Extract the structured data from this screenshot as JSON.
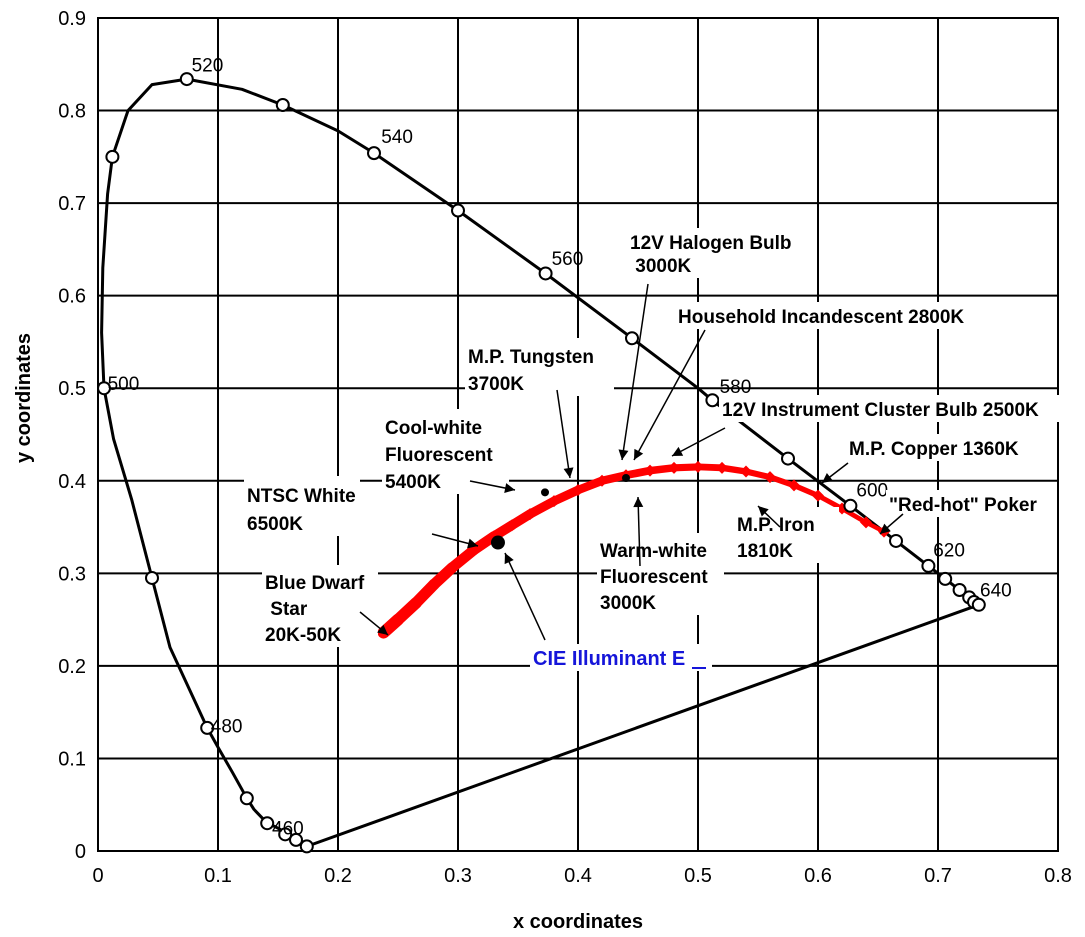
{
  "chart_data": {
    "type": "scatter",
    "xlabel": "x coordinates",
    "ylabel": "y coordinates",
    "xlim": [
      0,
      0.8
    ],
    "ylim": [
      0,
      0.9
    ],
    "xticks": [
      "0",
      "0.1",
      "0.2",
      "0.3",
      "0.4",
      "0.5",
      "0.6",
      "0.7",
      "0.8"
    ],
    "yticks": [
      "0",
      "0.1",
      "0.2",
      "0.3",
      "0.4",
      "0.5",
      "0.6",
      "0.7",
      "0.8",
      "0.9"
    ],
    "grid": true,
    "spectral_locus": [
      [
        0.174,
        0.005
      ],
      [
        0.17,
        0.008
      ],
      [
        0.165,
        0.012
      ],
      [
        0.158,
        0.019
      ],
      [
        0.148,
        0.026
      ],
      [
        0.141,
        0.03
      ],
      [
        0.13,
        0.045
      ],
      [
        0.124,
        0.057
      ],
      [
        0.112,
        0.085
      ],
      [
        0.1,
        0.112
      ],
      [
        0.091,
        0.133
      ],
      [
        0.06,
        0.22
      ],
      [
        0.045,
        0.295
      ],
      [
        0.028,
        0.38
      ],
      [
        0.013,
        0.445
      ],
      [
        0.005,
        0.5
      ],
      [
        0.003,
        0.56
      ],
      [
        0.004,
        0.63
      ],
      [
        0.008,
        0.71
      ],
      [
        0.012,
        0.75
      ],
      [
        0.025,
        0.8
      ],
      [
        0.045,
        0.828
      ],
      [
        0.074,
        0.834
      ],
      [
        0.12,
        0.823
      ],
      [
        0.154,
        0.806
      ],
      [
        0.2,
        0.778
      ],
      [
        0.23,
        0.754
      ],
      [
        0.3,
        0.692
      ],
      [
        0.373,
        0.624
      ],
      [
        0.445,
        0.554
      ],
      [
        0.5,
        0.5
      ],
      [
        0.512,
        0.487
      ],
      [
        0.575,
        0.424
      ],
      [
        0.627,
        0.373
      ],
      [
        0.665,
        0.335
      ],
      [
        0.692,
        0.308
      ],
      [
        0.706,
        0.294
      ],
      [
        0.718,
        0.282
      ],
      [
        0.726,
        0.274
      ],
      [
        0.73,
        0.269
      ],
      [
        0.734,
        0.266
      ]
    ],
    "purple_line": [
      [
        0.734,
        0.266
      ],
      [
        0.174,
        0.005
      ]
    ],
    "locus_markers": [
      [
        0.174,
        0.005
      ],
      [
        0.165,
        0.012
      ],
      [
        0.156,
        0.018
      ],
      [
        0.141,
        0.03
      ],
      [
        0.124,
        0.057
      ],
      [
        0.091,
        0.133
      ],
      [
        0.045,
        0.295
      ],
      [
        0.005,
        0.5
      ],
      [
        0.012,
        0.75
      ],
      [
        0.074,
        0.834
      ],
      [
        0.154,
        0.806
      ],
      [
        0.23,
        0.754
      ],
      [
        0.3,
        0.692
      ],
      [
        0.373,
        0.624
      ],
      [
        0.445,
        0.554
      ],
      [
        0.512,
        0.487
      ],
      [
        0.575,
        0.424
      ],
      [
        0.627,
        0.373
      ],
      [
        0.665,
        0.335
      ],
      [
        0.692,
        0.308
      ],
      [
        0.706,
        0.294
      ],
      [
        0.718,
        0.282
      ],
      [
        0.726,
        0.274
      ],
      [
        0.73,
        0.269
      ],
      [
        0.734,
        0.266
      ]
    ],
    "wavelength_labels": [
      {
        "text": "460",
        "x": 0.145,
        "y": 0.018
      },
      {
        "text": "480",
        "x": 0.094,
        "y": 0.128
      },
      {
        "text": "500",
        "x": 0.008,
        "y": 0.498
      },
      {
        "text": "520",
        "x": 0.078,
        "y": 0.842
      },
      {
        "text": "540",
        "x": 0.236,
        "y": 0.765
      },
      {
        "text": "560",
        "x": 0.378,
        "y": 0.633
      },
      {
        "text": "580",
        "x": 0.518,
        "y": 0.495
      },
      {
        "text": "600",
        "x": 0.632,
        "y": 0.383
      },
      {
        "text": "620",
        "x": 0.696,
        "y": 0.318
      },
      {
        "text": "640",
        "x": 0.735,
        "y": 0.275
      }
    ],
    "planckian_locus": [
      [
        0.238,
        0.236
      ],
      [
        0.25,
        0.25
      ],
      [
        0.265,
        0.268
      ],
      [
        0.28,
        0.288
      ],
      [
        0.295,
        0.306
      ],
      [
        0.313,
        0.325
      ],
      [
        0.33,
        0.34
      ],
      [
        0.345,
        0.352
      ],
      [
        0.36,
        0.364
      ],
      [
        0.38,
        0.378
      ],
      [
        0.4,
        0.39
      ],
      [
        0.42,
        0.4
      ],
      [
        0.44,
        0.406
      ],
      [
        0.46,
        0.411
      ],
      [
        0.48,
        0.414
      ],
      [
        0.5,
        0.415
      ],
      [
        0.52,
        0.414
      ],
      [
        0.54,
        0.41
      ],
      [
        0.56,
        0.404
      ],
      [
        0.58,
        0.395
      ],
      [
        0.6,
        0.384
      ],
      [
        0.62,
        0.37
      ],
      [
        0.64,
        0.355
      ],
      [
        0.655,
        0.345
      ]
    ],
    "points": [
      {
        "name": "CIE Illuminant E",
        "x": 0.3333,
        "y": 0.3333
      },
      {
        "name": "Cool-white Fluorescent",
        "x": 0.3725,
        "y": 0.3875
      },
      {
        "name": "Warm-white Fluorescent",
        "x": 0.44,
        "y": 0.403
      }
    ],
    "annotations": [
      {
        "id": "halogen",
        "lines": [
          "12V Halogen Bulb",
          " 3000K"
        ]
      },
      {
        "id": "household",
        "lines": [
          "Household Incandescent 2800K"
        ]
      },
      {
        "id": "tungsten",
        "lines": [
          "M.P. Tungsten",
          "3700K"
        ]
      },
      {
        "id": "cluster",
        "lines": [
          "12V Instrument Cluster Bulb 2500K"
        ]
      },
      {
        "id": "coolwhite",
        "lines": [
          "Cool-white",
          "Fluorescent",
          "5400K"
        ]
      },
      {
        "id": "copper",
        "lines": [
          "M.P. Copper 1360K"
        ]
      },
      {
        "id": "ntsc",
        "lines": [
          "NTSC White",
          "6500K"
        ]
      },
      {
        "id": "redhot",
        "lines": [
          "\"Red-hot\" Poker"
        ]
      },
      {
        "id": "iron",
        "lines": [
          "M.P. Iron",
          "1810K"
        ]
      },
      {
        "id": "warmwhite",
        "lines": [
          "Warm-white",
          "Fluorescent",
          "3000K"
        ]
      },
      {
        "id": "bluedwarf",
        "lines": [
          "Blue Dwarf",
          " Star",
          "20K-50K"
        ]
      },
      {
        "id": "illuminant_e",
        "lines": [
          "CIE Illuminant E"
        ]
      }
    ],
    "colors": {
      "locus": "#000000",
      "planckian": "#ff0000",
      "grid": "#000000",
      "illuminant_e_label": "#1515d9"
    }
  }
}
